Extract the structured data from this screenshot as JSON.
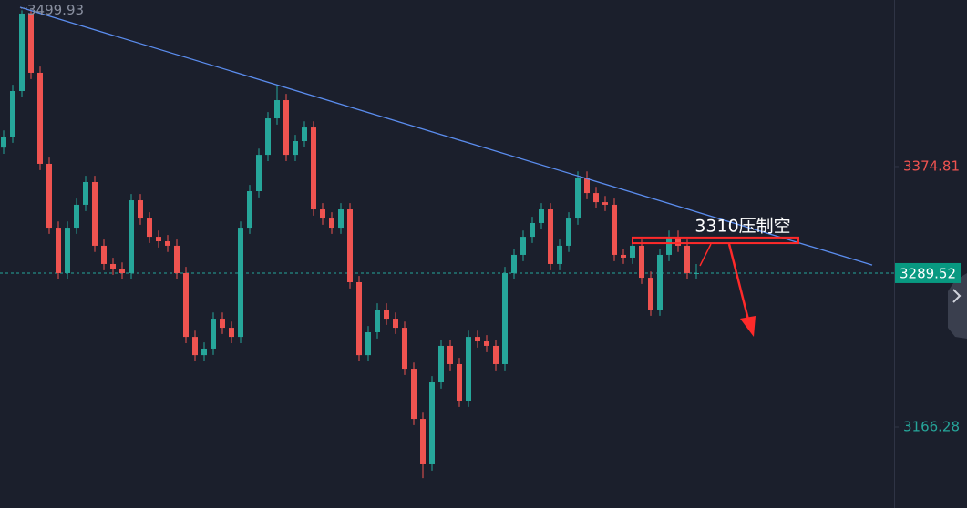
{
  "chart_data": {
    "type": "candlestick",
    "up_color": "#26a69a",
    "down_color": "#ef5350",
    "ylim": [
      3101.4,
      3508.2
    ],
    "yticks": [
      3374.81,
      3166.28
    ],
    "ytick_colors": [
      "#ef5350",
      "#26a69a"
    ],
    "high_label": 3499.93,
    "last_price": 3289.52,
    "open": [
      3390.0,
      3398.8,
      3435.3,
      3497.3,
      3449.9,
      3377.0,
      3325.9,
      3289.5,
      3325.9,
      3344.2,
      3362.4,
      3311.4,
      3296.8,
      3293.1,
      3289.5,
      3347.8,
      3333.2,
      3318.6,
      3315.0,
      3311.4,
      3289.5,
      3238.4,
      3223.8,
      3229.0,
      3253.0,
      3245.7,
      3238.4,
      3325.9,
      3355.1,
      3384.2,
      3413.4,
      3428.0,
      3384.2,
      3395.2,
      3406.1,
      3340.5,
      3333.2,
      3325.9,
      3340.5,
      3282.2,
      3223.8,
      3242.1,
      3260.3,
      3253.0,
      3245.7,
      3212.9,
      3172.8,
      3136.4,
      3202.0,
      3231.2,
      3216.6,
      3187.4,
      3238.4,
      3234.8,
      3231.2,
      3216.6,
      3289.5,
      3304.1,
      3318.6,
      3329.6,
      3340.5,
      3296.8,
      3311.4,
      3333.2,
      3366.0,
      3353.6,
      3346.3,
      3344.2,
      3304.1,
      3301.9,
      3311.4,
      3285.8,
      3260.3,
      3304.1,
      3318.6,
      3311.4,
      3289.5
    ],
    "high": [
      3403.8,
      3440.3,
      3499.93,
      3499.93,
      3454.9,
      3382.0,
      3330.9,
      3330.9,
      3349.2,
      3367.4,
      3367.4,
      3316.4,
      3301.8,
      3298.1,
      3352.8,
      3352.8,
      3338.2,
      3323.6,
      3320.0,
      3316.4,
      3294.5,
      3243.4,
      3234.0,
      3258.0,
      3258.0,
      3250.7,
      3330.9,
      3360.1,
      3389.2,
      3418.4,
      3440.0,
      3433.0,
      3400.2,
      3411.1,
      3411.1,
      3345.5,
      3338.2,
      3345.5,
      3345.5,
      3287.2,
      3247.1,
      3265.3,
      3265.3,
      3258.0,
      3250.7,
      3217.9,
      3177.8,
      3207.0,
      3236.2,
      3236.2,
      3221.6,
      3243.4,
      3243.4,
      3239.8,
      3236.2,
      3294.5,
      3309.1,
      3323.6,
      3334.6,
      3345.5,
      3345.5,
      3316.4,
      3338.2,
      3371.0,
      3371.0,
      3358.6,
      3351.3,
      3349.2,
      3309.1,
      3316.4,
      3316.4,
      3290.8,
      3309.1,
      3323.6,
      3323.6,
      3316.4,
      3296.8
    ],
    "low": [
      3385.0,
      3393.8,
      3430.3,
      3444.9,
      3372.0,
      3320.9,
      3284.5,
      3284.5,
      3320.9,
      3339.2,
      3306.4,
      3291.8,
      3288.1,
      3284.5,
      3284.5,
      3328.2,
      3313.6,
      3310.0,
      3306.4,
      3284.5,
      3233.4,
      3218.8,
      3218.8,
      3224.0,
      3240.7,
      3233.4,
      3233.4,
      3320.9,
      3350.1,
      3379.2,
      3408.4,
      3379.2,
      3379.2,
      3390.2,
      3335.5,
      3328.2,
      3320.9,
      3320.9,
      3277.2,
      3218.8,
      3218.8,
      3237.1,
      3248.0,
      3240.7,
      3207.9,
      3167.8,
      3125.4,
      3131.4,
      3197.0,
      3211.6,
      3182.4,
      3182.4,
      3229.8,
      3226.2,
      3211.6,
      3211.6,
      3284.5,
      3299.1,
      3313.6,
      3324.6,
      3291.8,
      3291.8,
      3306.4,
      3328.2,
      3348.6,
      3341.3,
      3339.2,
      3299.1,
      3296.9,
      3296.9,
      3280.8,
      3255.3,
      3255.3,
      3299.1,
      3306.4,
      3284.5,
      3284.5
    ],
    "close": [
      3398.8,
      3435.3,
      3497.3,
      3449.9,
      3377.0,
      3325.9,
      3289.5,
      3325.9,
      3344.2,
      3362.4,
      3311.4,
      3296.8,
      3293.1,
      3289.5,
      3347.8,
      3333.2,
      3318.6,
      3315.0,
      3311.4,
      3289.5,
      3238.4,
      3223.8,
      3229.0,
      3253.0,
      3245.7,
      3238.4,
      3325.9,
      3355.1,
      3384.2,
      3413.4,
      3428.0,
      3384.2,
      3395.2,
      3406.1,
      3340.5,
      3333.2,
      3325.9,
      3340.5,
      3282.2,
      3223.8,
      3242.1,
      3260.3,
      3253.0,
      3245.7,
      3212.9,
      3172.8,
      3136.4,
      3202.0,
      3231.2,
      3216.6,
      3187.4,
      3238.4,
      3234.8,
      3231.2,
      3216.6,
      3289.5,
      3304.1,
      3318.6,
      3329.6,
      3340.5,
      3296.8,
      3311.4,
      3333.2,
      3366.0,
      3353.6,
      3346.3,
      3344.2,
      3304.1,
      3301.9,
      3311.4,
      3285.8,
      3260.3,
      3304.1,
      3318.6,
      3311.4,
      3289.5,
      3289.52
    ],
    "trendline": {
      "color": "#5b8def",
      "x": [
        1.8,
        95.3
      ],
      "y": [
        3502.4,
        3296.0
      ]
    },
    "resistance_zone": {
      "color": "#ff2a2a",
      "x": [
        69.0,
        87.2
      ],
      "y": [
        3313.5,
        3318.0
      ]
    },
    "annotation": "3310压制空"
  }
}
